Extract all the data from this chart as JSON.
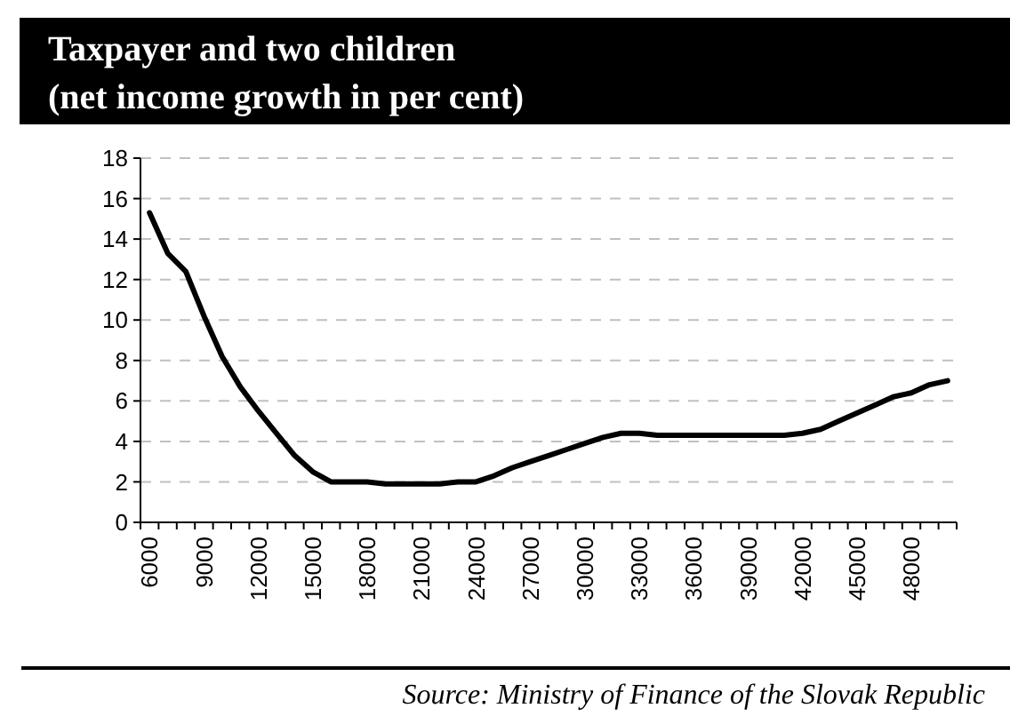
{
  "chart_data": {
    "type": "line",
    "title": "Taxpayer and two children\n(net income growth in per cent)",
    "categories": [
      "6000",
      null,
      null,
      "9000",
      null,
      null,
      "12000",
      null,
      null,
      "15000",
      null,
      null,
      "18000",
      null,
      null,
      "21000",
      null,
      null,
      "24000",
      null,
      null,
      "27000",
      null,
      null,
      "30000",
      null,
      null,
      "33000",
      null,
      null,
      "36000",
      null,
      null,
      "39000",
      null,
      null,
      "42000",
      null,
      null,
      "45000",
      null,
      null,
      "48000",
      null,
      null
    ],
    "series": [
      {
        "color": "#000000",
        "values": [
          15.3,
          13.3,
          12.4,
          10.2,
          8.2,
          6.7,
          5.5,
          4.4,
          3.3,
          2.5,
          2.0,
          2.0,
          2.0,
          1.9,
          1.9,
          1.9,
          1.9,
          2.0,
          2.0,
          2.3,
          2.7,
          3.0,
          3.3,
          3.6,
          3.9,
          4.2,
          4.4,
          4.4,
          4.3,
          4.3,
          4.3,
          4.3,
          4.3,
          4.3,
          4.3,
          4.3,
          4.4,
          4.6,
          5.0,
          5.4,
          5.8,
          6.2,
          6.4,
          6.8,
          7.0
        ]
      }
    ],
    "ylim": [
      0,
      18
    ],
    "yticks": [
      0,
      2,
      4,
      6,
      8,
      10,
      12,
      14,
      16,
      18
    ],
    "grid": "y",
    "marker": "none",
    "line_style": "solid",
    "annotations": [
      "Source: Ministry of Finance of the Slovak Republic"
    ]
  }
}
